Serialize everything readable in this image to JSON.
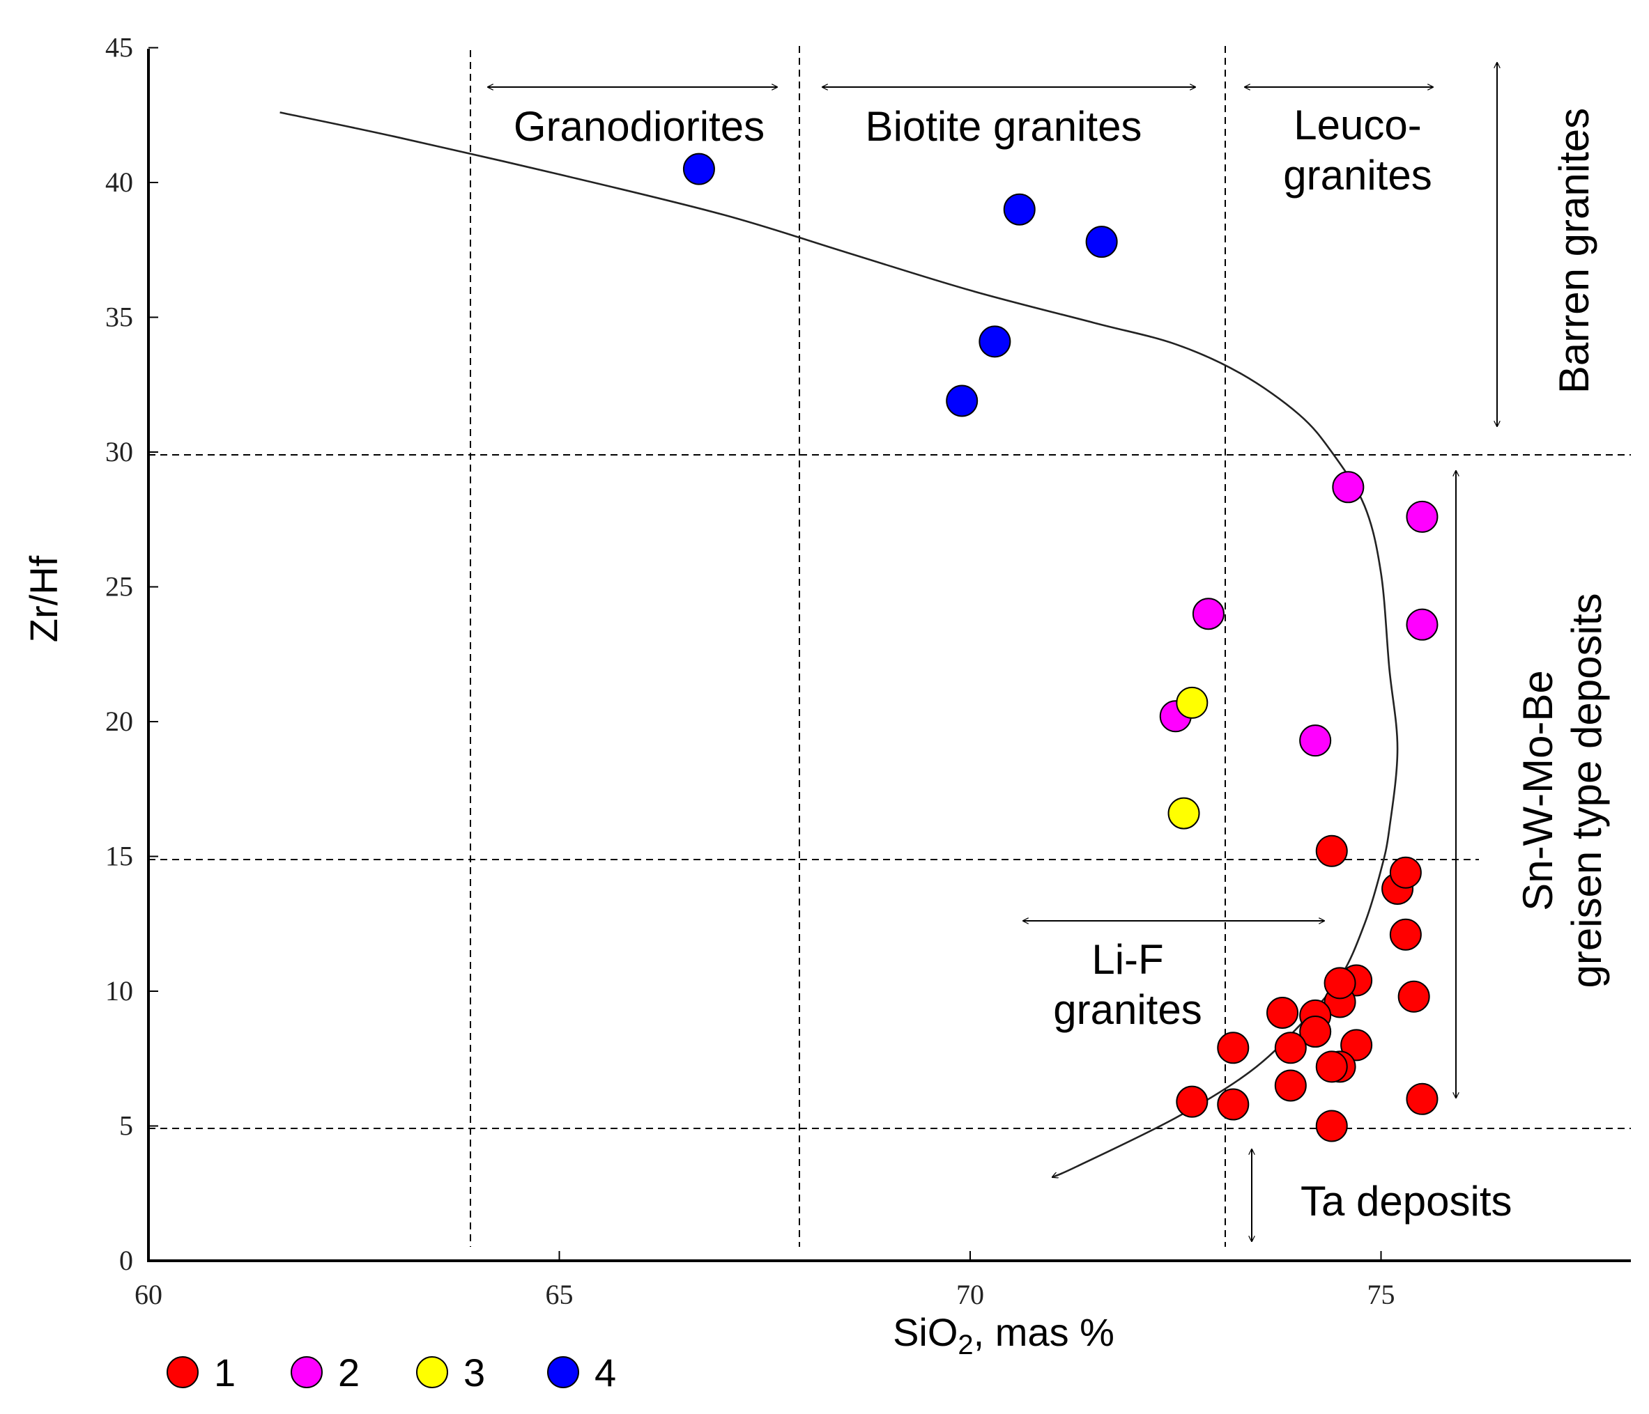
{
  "chart_data": {
    "type": "scatter",
    "xlabel": {
      "main": "SiO",
      "sub": "2",
      "rest": ", mas %"
    },
    "ylabel": "Zr/Hf",
    "xlim": [
      60,
      78.3
    ],
    "ylim": [
      0,
      45
    ],
    "xticks": [
      60,
      65,
      70,
      75
    ],
    "yticks": [
      0,
      5,
      10,
      15,
      20,
      25,
      30,
      35,
      40,
      45
    ],
    "grid": false,
    "legend_position": "bottom-left",
    "series": [
      {
        "name": "1",
        "color": "#ff0000",
        "points": [
          [
            74.4,
            15.2
          ],
          [
            75.2,
            13.8
          ],
          [
            75.3,
            14.4
          ],
          [
            75.3,
            12.1
          ],
          [
            75.4,
            9.8
          ],
          [
            74.7,
            10.4
          ],
          [
            74.5,
            9.6
          ],
          [
            74.5,
            10.3
          ],
          [
            73.8,
            9.2
          ],
          [
            74.2,
            9.1
          ],
          [
            74.2,
            8.5
          ],
          [
            73.2,
            7.9
          ],
          [
            73.9,
            7.9
          ],
          [
            74.7,
            8.0
          ],
          [
            74.5,
            7.2
          ],
          [
            74.4,
            7.2
          ],
          [
            73.9,
            6.5
          ],
          [
            72.7,
            5.9
          ],
          [
            73.2,
            5.8
          ],
          [
            75.5,
            6.0
          ],
          [
            74.4,
            5.0
          ]
        ]
      },
      {
        "name": "2",
        "color": "#ff00ff",
        "points": [
          [
            74.6,
            28.7
          ],
          [
            75.5,
            27.6
          ],
          [
            72.9,
            24.0
          ],
          [
            75.5,
            23.6
          ],
          [
            72.5,
            20.2
          ],
          [
            74.2,
            19.3
          ]
        ]
      },
      {
        "name": "3",
        "color": "#ffff00",
        "points": [
          [
            72.7,
            20.7
          ],
          [
            72.6,
            16.6
          ]
        ]
      },
      {
        "name": "4",
        "color": "#0000ff",
        "points": [
          [
            66.7,
            40.5
          ],
          [
            70.6,
            39.0
          ],
          [
            71.6,
            37.8
          ],
          [
            70.3,
            34.1
          ],
          [
            69.9,
            31.9
          ]
        ]
      }
    ],
    "trend_curve": [
      [
        61.6,
        42.6
      ],
      [
        63.0,
        41.7
      ],
      [
        65.0,
        40.3
      ],
      [
        67.0,
        38.8
      ],
      [
        68.5,
        37.4
      ],
      [
        70.0,
        36.0
      ],
      [
        71.5,
        34.8
      ],
      [
        72.5,
        34.0
      ],
      [
        73.3,
        32.9
      ],
      [
        74.0,
        31.4
      ],
      [
        74.4,
        30.0
      ],
      [
        74.8,
        28.0
      ],
      [
        75.0,
        25.5
      ],
      [
        75.1,
        22.0
      ],
      [
        75.2,
        19.0
      ],
      [
        75.1,
        16.0
      ],
      [
        75.0,
        14.5
      ],
      [
        74.8,
        12.5
      ],
      [
        74.5,
        10.5
      ],
      [
        74.0,
        8.7
      ],
      [
        73.4,
        7.0
      ],
      [
        72.5,
        5.3
      ],
      [
        71.3,
        3.5
      ],
      [
        71.0,
        3.1
      ]
    ],
    "reference_lines": {
      "vertical": [
        64.0,
        68.0,
        73.3
      ],
      "horizontal": [
        30,
        15,
        5
      ]
    },
    "annotations": [
      {
        "id": "granodiorites",
        "lines": [
          "Granodiorites"
        ]
      },
      {
        "id": "biotite",
        "lines": [
          "Biotite granites"
        ]
      },
      {
        "id": "leuco",
        "lines": [
          "Leuco-",
          "granites"
        ]
      },
      {
        "id": "barren",
        "lines": [
          "Barren granites"
        ]
      },
      {
        "id": "snw",
        "lines": [
          "Sn-W-Mo-Be",
          "greisen type deposits"
        ]
      },
      {
        "id": "lif",
        "lines": [
          "Li-F",
          "granites"
        ]
      },
      {
        "id": "ta",
        "lines": [
          "Ta deposits"
        ]
      }
    ]
  }
}
